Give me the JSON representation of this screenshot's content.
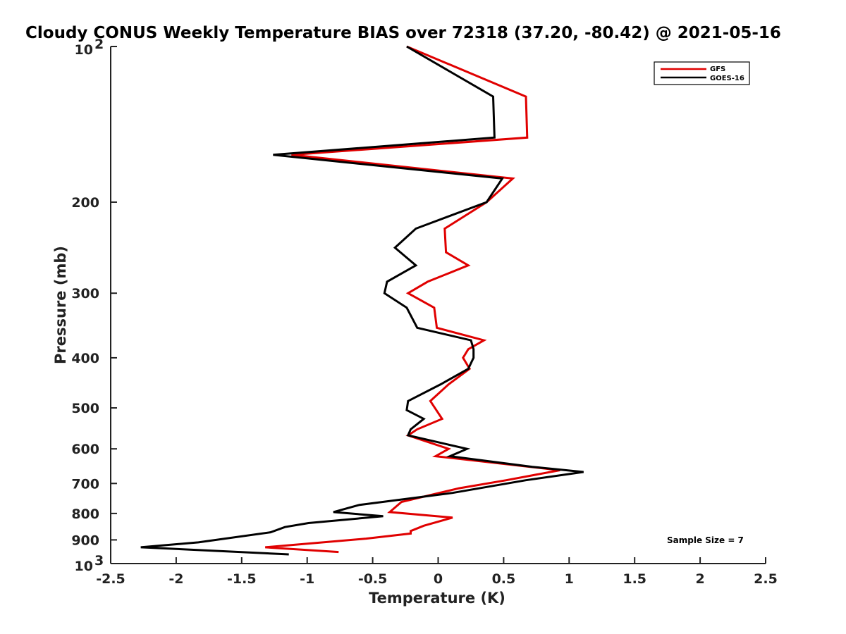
{
  "chart_data": {
    "type": "line",
    "title": "Cloudy CONUS Weekly Temperature BIAS over 72318 (37.20, -80.42) @ 2021-05-16",
    "xlabel": "Temperature (K)",
    "ylabel": "Pressure (mb)",
    "xlim": [
      -2.5,
      2.5
    ],
    "ylim": [
      100,
      1000
    ],
    "y_scale": "log",
    "y_reversed": true,
    "grid": false,
    "x_ticks": [
      -2.5,
      -2,
      -1.5,
      -1,
      -0.5,
      0,
      0.5,
      1,
      1.5,
      2,
      2.5
    ],
    "x_tick_labels": [
      "-2.5",
      "-2",
      "-1.5",
      "-1",
      "-0.5",
      "0",
      "0.5",
      "1",
      "1.5",
      "2",
      "2.5"
    ],
    "y_ticks": [
      200,
      300,
      400,
      500,
      600,
      700,
      800,
      900
    ],
    "y_tick_labels": [
      "200",
      "300",
      "400",
      "500",
      "600",
      "700",
      "800",
      "900"
    ],
    "y_top_label": {
      "base": "10",
      "exp": "2"
    },
    "y_bottom_label": {
      "base": "10",
      "exp": "3"
    },
    "legend": {
      "position": "top-right",
      "entries": [
        "GFS",
        "GOES-16"
      ]
    },
    "annotation": "Sample Size = 7",
    "series": [
      {
        "name": "GFS",
        "color": "#e00000",
        "points": [
          {
            "x": -0.24,
            "p": 100
          },
          {
            "x": 0.67,
            "p": 125
          },
          {
            "x": 0.68,
            "p": 150
          },
          {
            "x": -1.12,
            "p": 162
          },
          {
            "x": 0.57,
            "p": 180
          },
          {
            "x": 0.37,
            "p": 200
          },
          {
            "x": 0.05,
            "p": 225
          },
          {
            "x": 0.06,
            "p": 250
          },
          {
            "x": 0.23,
            "p": 265
          },
          {
            "x": -0.08,
            "p": 285
          },
          {
            "x": -0.23,
            "p": 300
          },
          {
            "x": -0.03,
            "p": 320
          },
          {
            "x": -0.01,
            "p": 350
          },
          {
            "x": 0.35,
            "p": 370
          },
          {
            "x": 0.23,
            "p": 385
          },
          {
            "x": 0.19,
            "p": 400
          },
          {
            "x": 0.24,
            "p": 420
          },
          {
            "x": 0.08,
            "p": 450
          },
          {
            "x": -0.06,
            "p": 485
          },
          {
            "x": 0.03,
            "p": 525
          },
          {
            "x": -0.16,
            "p": 550
          },
          {
            "x": -0.23,
            "p": 565
          },
          {
            "x": 0.08,
            "p": 600
          },
          {
            "x": -0.02,
            "p": 620
          },
          {
            "x": 0.93,
            "p": 660
          },
          {
            "x": 0.52,
            "p": 690
          },
          {
            "x": 0.16,
            "p": 715
          },
          {
            "x": -0.28,
            "p": 760
          },
          {
            "x": -0.37,
            "p": 795
          },
          {
            "x": 0.11,
            "p": 815
          },
          {
            "x": -0.11,
            "p": 845
          },
          {
            "x": -0.21,
            "p": 865
          },
          {
            "x": -0.21,
            "p": 875
          },
          {
            "x": -0.55,
            "p": 895
          },
          {
            "x": -1.32,
            "p": 930
          },
          {
            "x": -0.76,
            "p": 950
          }
        ]
      },
      {
        "name": "GOES-16",
        "color": "#000000",
        "points": [
          {
            "x": -0.24,
            "p": 100
          },
          {
            "x": 0.42,
            "p": 125
          },
          {
            "x": 0.43,
            "p": 150
          },
          {
            "x": -1.26,
            "p": 162
          },
          {
            "x": 0.49,
            "p": 180
          },
          {
            "x": 0.37,
            "p": 200
          },
          {
            "x": -0.17,
            "p": 225
          },
          {
            "x": -0.33,
            "p": 245
          },
          {
            "x": -0.17,
            "p": 265
          },
          {
            "x": -0.39,
            "p": 285
          },
          {
            "x": -0.41,
            "p": 300
          },
          {
            "x": -0.24,
            "p": 320
          },
          {
            "x": -0.16,
            "p": 350
          },
          {
            "x": 0.25,
            "p": 370
          },
          {
            "x": 0.27,
            "p": 385
          },
          {
            "x": 0.27,
            "p": 400
          },
          {
            "x": 0.23,
            "p": 420
          },
          {
            "x": 0.02,
            "p": 450
          },
          {
            "x": -0.23,
            "p": 485
          },
          {
            "x": -0.24,
            "p": 505
          },
          {
            "x": -0.11,
            "p": 525
          },
          {
            "x": -0.21,
            "p": 550
          },
          {
            "x": -0.23,
            "p": 565
          },
          {
            "x": 0.22,
            "p": 600
          },
          {
            "x": 0.09,
            "p": 620
          },
          {
            "x": 0.72,
            "p": 650
          },
          {
            "x": 1.11,
            "p": 665
          },
          {
            "x": 0.67,
            "p": 690
          },
          {
            "x": 0.11,
            "p": 730
          },
          {
            "x": -0.6,
            "p": 770
          },
          {
            "x": -0.8,
            "p": 795
          },
          {
            "x": -0.42,
            "p": 810
          },
          {
            "x": -0.99,
            "p": 835
          },
          {
            "x": -1.17,
            "p": 850
          },
          {
            "x": -1.28,
            "p": 870
          },
          {
            "x": -1.83,
            "p": 910
          },
          {
            "x": -2.27,
            "p": 930
          },
          {
            "x": -1.14,
            "p": 960
          }
        ]
      }
    ]
  }
}
